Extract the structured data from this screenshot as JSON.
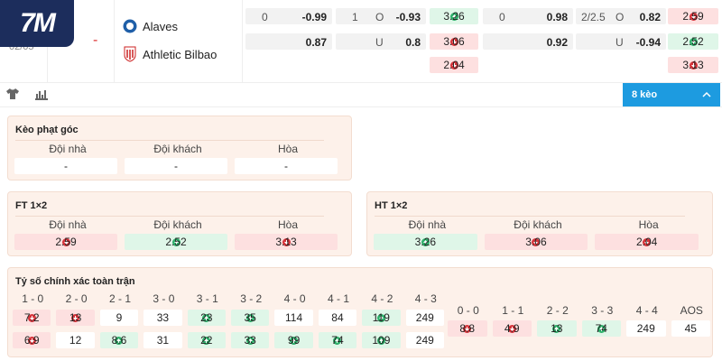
{
  "logo": "7M",
  "match": {
    "date": "02/05",
    "status": "-",
    "home": "Alaves",
    "away": "Athletic Bilbao"
  },
  "odds": {
    "rows": [
      [
        {
          "line": "0",
          "value": "-0.99"
        },
        {
          "line": "1",
          "side": "O",
          "value": "-0.93"
        },
        {
          "value": "3.26",
          "trend": "up"
        },
        {
          "line": "0",
          "value": "0.98"
        },
        {
          "line": "2/2.5",
          "side": "O",
          "value": "0.82"
        },
        {
          "value": "2.59",
          "trend": "down"
        }
      ],
      [
        {
          "value": "0.87"
        },
        {
          "side": "U",
          "value": "0.8"
        },
        {
          "value": "3.06",
          "trend": "down"
        },
        {
          "value": "0.92"
        },
        {
          "side": "U",
          "value": "-0.94"
        },
        {
          "value": "2.52",
          "trend": "up"
        }
      ],
      [
        null,
        null,
        {
          "value": "2.04",
          "trend": "down"
        },
        null,
        null,
        {
          "value": "3.13",
          "trend": "down"
        }
      ]
    ]
  },
  "toolbar": {
    "markets": "8 kèo"
  },
  "corner": {
    "title": "Kèo phạt góc",
    "headers": [
      "Đội nhà",
      "Đội khách",
      "Hòa"
    ],
    "values": [
      {
        "value": "-"
      },
      {
        "value": "-"
      },
      {
        "value": "-"
      }
    ]
  },
  "ft": {
    "title": "FT 1×2",
    "headers": [
      "Đội nhà",
      "Đội khách",
      "Hòa"
    ],
    "values": [
      {
        "value": "2.59",
        "trend": "down"
      },
      {
        "value": "2.52",
        "trend": "up"
      },
      {
        "value": "3.13",
        "trend": "down"
      }
    ]
  },
  "ht": {
    "title": "HT 1×2",
    "headers": [
      "Đội nhà",
      "Đội khách",
      "Hòa"
    ],
    "values": [
      {
        "value": "3.26",
        "trend": "up"
      },
      {
        "value": "3.06",
        "trend": "down"
      },
      {
        "value": "2.04",
        "trend": "down"
      }
    ]
  },
  "correct_score": {
    "title": "Tỷ số chính xác toàn trận",
    "groups": [
      {
        "headers": [
          "1 - 0",
          "2 - 0",
          "2 - 1",
          "3 - 0",
          "3 - 1",
          "3 - 2",
          "4 - 0",
          "4 - 1",
          "4 - 2",
          "4 - 3"
        ],
        "rows": [
          [
            {
              "value": "7.2",
              "trend": "down"
            },
            {
              "value": "13",
              "trend": "down"
            },
            {
              "value": "9"
            },
            {
              "value": "33"
            },
            {
              "value": "23",
              "trend": "up"
            },
            {
              "value": "35",
              "trend": "up"
            },
            {
              "value": "114"
            },
            {
              "value": "84"
            },
            {
              "value": "119",
              "trend": "up"
            },
            {
              "value": "249"
            }
          ],
          [
            {
              "value": "6.9",
              "trend": "down"
            },
            {
              "value": "12"
            },
            {
              "value": "8.6",
              "trend": "up"
            },
            {
              "value": "31"
            },
            {
              "value": "22",
              "trend": "up"
            },
            {
              "value": "33",
              "trend": "up"
            },
            {
              "value": "99",
              "trend": "up"
            },
            {
              "value": "74",
              "trend": "up"
            },
            {
              "value": "109",
              "trend": "up"
            },
            {
              "value": "249"
            }
          ]
        ]
      },
      {
        "headers": [
          "0 - 0",
          "1 - 1",
          "2 - 2",
          "3 - 3",
          "4 - 4",
          "AOS"
        ],
        "rows": [
          [
            {
              "value": "8.8",
              "trend": "down"
            },
            {
              "value": "4.9",
              "trend": "down"
            },
            {
              "value": "13",
              "trend": "up"
            },
            {
              "value": "74",
              "trend": "up"
            },
            {
              "value": "249"
            },
            {
              "value": "45"
            }
          ]
        ]
      }
    ]
  }
}
